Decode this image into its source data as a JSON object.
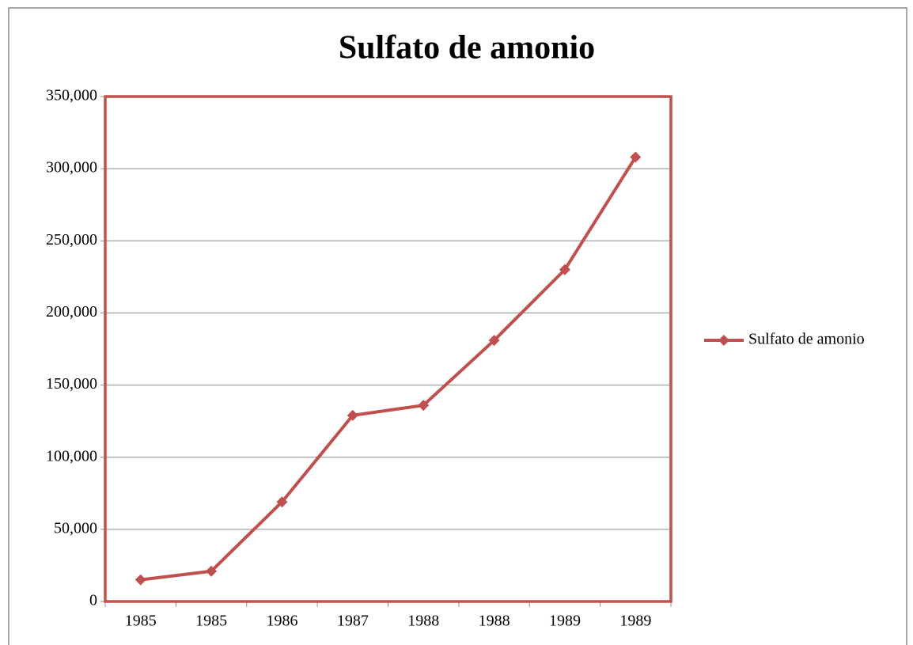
{
  "chart_data": {
    "type": "line",
    "title": "Sulfato de amonio",
    "categories": [
      "1985",
      "1985",
      "1986",
      "1987",
      "1988",
      "1988",
      "1989",
      "1989"
    ],
    "series": [
      {
        "name": "Sulfato de amonio",
        "color": "#c0504d",
        "values": [
          15000,
          21000,
          69000,
          129000,
          136000,
          181000,
          230000,
          308000
        ]
      }
    ],
    "ylim": [
      0,
      350000
    ],
    "yticks": [
      0,
      {
        "value": 50000,
        "label": "50,000"
      },
      {
        "value": 100000,
        "label": "100,000"
      },
      {
        "value": 150000,
        "label": "150,000"
      },
      {
        "value": 200000,
        "label": "200,000"
      },
      {
        "value": 250000,
        "label": "250,000"
      },
      {
        "value": 300000,
        "label": "300,000"
      },
      {
        "value": 350000,
        "label": "350,000"
      }
    ],
    "grid": true,
    "legend": "right"
  }
}
